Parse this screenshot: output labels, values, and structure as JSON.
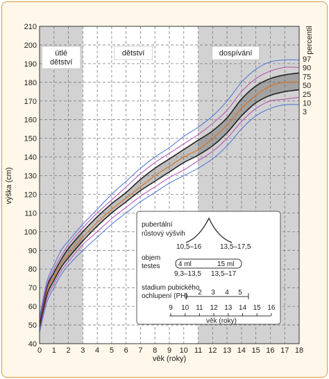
{
  "chart_data": {
    "type": "line",
    "xlabel": "věk (roky)",
    "ylabel": "výška (cm)",
    "xlim": [
      0,
      18
    ],
    "ylim": [
      40,
      210
    ],
    "x_ticks": [
      0,
      1,
      2,
      3,
      4,
      5,
      6,
      7,
      8,
      9,
      10,
      11,
      12,
      13,
      14,
      15,
      16,
      17,
      18
    ],
    "y_ticks": [
      40,
      50,
      60,
      70,
      80,
      90,
      100,
      110,
      120,
      130,
      140,
      150,
      160,
      170,
      180,
      190,
      200,
      210
    ],
    "grid": true,
    "percentile_axis_label": "percentil",
    "shaded_periods": [
      {
        "label": "útlé dětství",
        "from": 0,
        "to": 3
      },
      {
        "label": "dětství",
        "from": 3,
        "to": 11
      },
      {
        "label": "dospívání",
        "from": 11,
        "to": 18
      }
    ],
    "x": [
      0,
      0.5,
      1,
      1.5,
      2,
      3,
      4,
      5,
      6,
      7,
      8,
      9,
      10,
      11,
      12,
      13,
      14,
      15,
      16,
      17,
      18
    ],
    "series": [
      {
        "name": "3",
        "color": "#4a6fd6",
        "values": [
          46,
          62,
          70,
          77,
          82,
          90,
          97,
          104,
          110,
          116,
          121,
          126,
          130,
          134,
          139,
          146,
          155,
          162,
          166,
          168,
          168
        ]
      },
      {
        "name": "10",
        "color": "#b14bb0",
        "values": [
          48,
          64,
          72,
          79,
          84,
          93,
          100,
          107,
          113,
          119,
          124,
          129,
          133,
          138,
          143,
          150,
          159,
          166,
          170,
          171,
          172
        ]
      },
      {
        "name": "25",
        "color": "#222222",
        "values": [
          49,
          66,
          74,
          81,
          86,
          95,
          103,
          110,
          116,
          122,
          127,
          132,
          137,
          141,
          146,
          153,
          162,
          169,
          173,
          175,
          176
        ]
      },
      {
        "name": "50",
        "color": "#d9701e",
        "values": [
          50,
          68,
          76,
          83,
          88,
          97,
          105,
          112,
          118,
          124,
          130,
          135,
          140,
          144,
          150,
          157,
          166,
          173,
          178,
          180,
          180
        ]
      },
      {
        "name": "75",
        "color": "#222222",
        "values": [
          51,
          70,
          78,
          85,
          91,
          100,
          108,
          115,
          121,
          128,
          134,
          139,
          144,
          149,
          154,
          161,
          171,
          178,
          182,
          184,
          185
        ]
      },
      {
        "name": "90",
        "color": "#b14bb0",
        "values": [
          52,
          71,
          80,
          87,
          93,
          102,
          110,
          117,
          124,
          131,
          137,
          142,
          147,
          152,
          158,
          165,
          175,
          182,
          186,
          188,
          188
        ]
      },
      {
        "name": "97",
        "color": "#4a6fd6",
        "values": [
          54,
          73,
          82,
          90,
          95,
          104,
          112,
          120,
          127,
          134,
          140,
          145,
          151,
          156,
          162,
          170,
          180,
          187,
          191,
          192,
          192
        ]
      }
    ]
  },
  "inset": {
    "growth_label_1": "pubertální",
    "growth_label_2": "růstový výšvih",
    "growth_range_1": "10,5–16",
    "growth_range_2": "13,5–17,5",
    "testes_label_1": "objem",
    "testes_label_2": "testes",
    "testes_vol_1": "4 ml",
    "testes_vol_2": "15 ml",
    "testes_range_1": "9,3–13,5",
    "testes_range_2": "13,5–17",
    "ph_label_1": "stadium pubického",
    "ph_label_2": "ochlupení (PH)",
    "ph_stages": [
      "2",
      "3",
      "4",
      "5"
    ],
    "axis_ticks": [
      "9",
      "10",
      "11",
      "12",
      "13",
      "14",
      "15",
      "16"
    ],
    "axis_label": "věk (roky)"
  }
}
